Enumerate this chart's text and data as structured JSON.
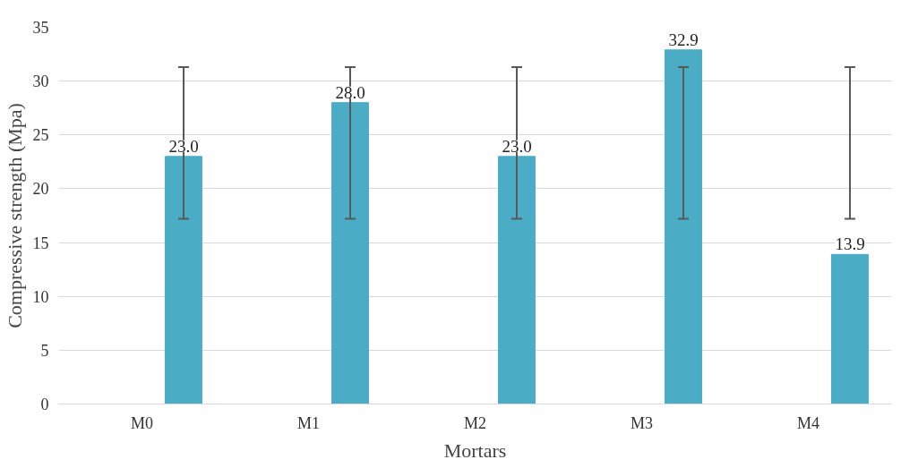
{
  "chart_data": {
    "type": "bar",
    "xlabel": "Mortars",
    "ylabel": "Compressive strength (Mpa)",
    "categories": [
      "M0",
      "M1",
      "M2",
      "M3",
      "M4"
    ],
    "values": [
      23.0,
      28.0,
      23.0,
      32.9,
      13.9
    ],
    "color": "#4bacc6",
    "errors": [
      [
        17.2,
        31.3
      ],
      [
        17.2,
        31.3
      ],
      [
        17.2,
        31.3
      ],
      [
        17.2,
        31.3
      ],
      [
        17.2,
        31.3
      ]
    ],
    "value_labels": [
      "23.0",
      "28.0",
      "23.0",
      "32.9",
      "13.9"
    ],
    "ylim": [
      0,
      35
    ],
    "yticks": [
      0,
      5,
      10,
      15,
      20,
      25,
      30,
      35
    ],
    "grid": "y"
  }
}
